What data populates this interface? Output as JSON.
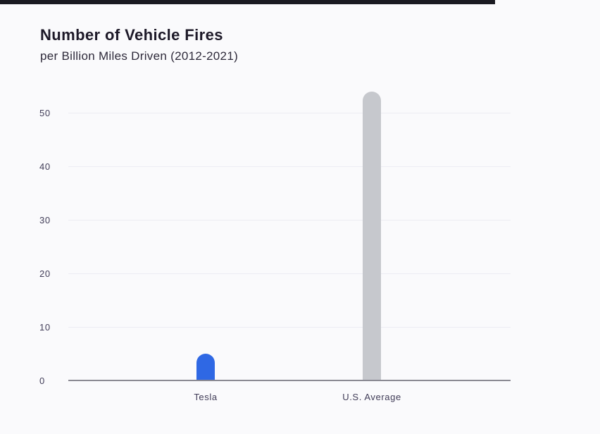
{
  "header": {
    "title": "Number of Vehicle Fires",
    "subtitle": "per Billion Miles Driven (2012-2021)"
  },
  "chart_data": {
    "type": "bar",
    "title": "Number of Vehicle Fires",
    "subtitle": "per Billion Miles Driven (2012-2021)",
    "categories": [
      "Tesla",
      "U.S. Average"
    ],
    "values": [
      5,
      54
    ],
    "yticks": [
      0,
      10,
      20,
      30,
      40,
      50
    ],
    "ylim": [
      0,
      55
    ],
    "grid": true,
    "legend": false,
    "bar_colors": [
      "#2f68e4",
      "#c6c8cd"
    ]
  },
  "colors": {
    "background": "#fafafc",
    "progress_bar": "#1a1a21",
    "title_text": "#1d1928",
    "subtitle_text": "#2e2a3a",
    "axis_label_text": "#403c57",
    "gridline": "#ececf3",
    "axis_line": "#8b8a93",
    "tesla_bar": "#2f68e4",
    "us_average_bar": "#c6c8cd"
  }
}
